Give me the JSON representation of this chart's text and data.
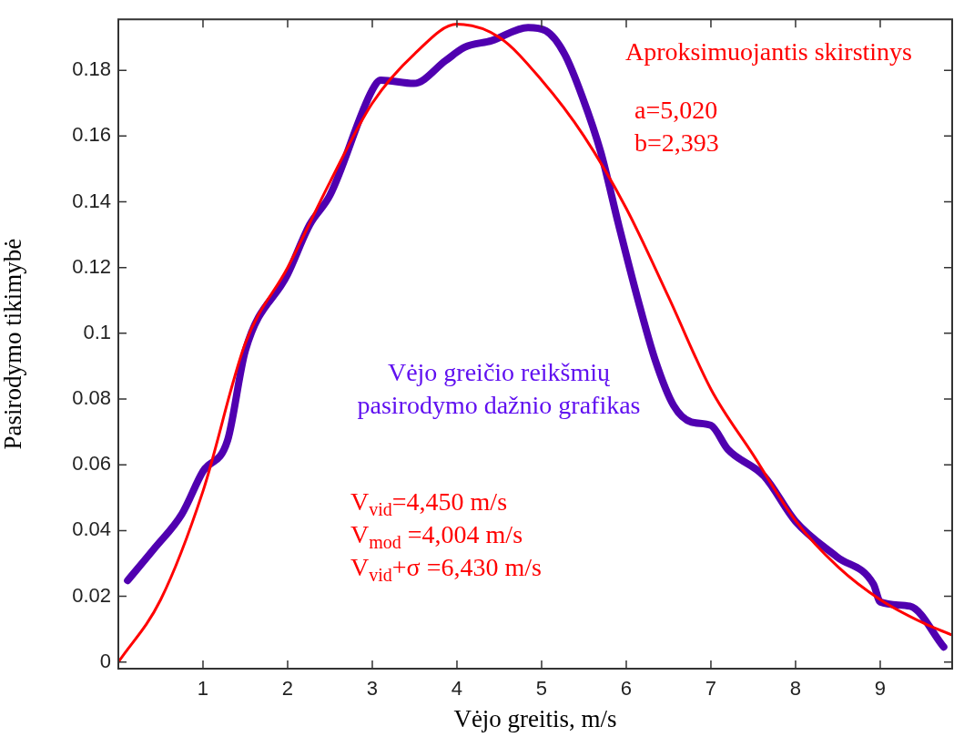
{
  "chart_data": {
    "type": "line",
    "xlabel": "Vėjo greitis, m/s",
    "ylabel": "Pasirodymo tikimybė",
    "xlim": [
      0,
      9.85
    ],
    "xticks": [
      1,
      2,
      3,
      4,
      5,
      6,
      7,
      8,
      9
    ],
    "ylim": [
      -0.002,
      0.1955
    ],
    "yticks": [
      0,
      0.02,
      0.04,
      0.06,
      0.08,
      0.1,
      0.12,
      0.14,
      0.16,
      0.18
    ],
    "grid": false,
    "legend": false,
    "marker": "none",
    "line_style": "solid",
    "series": [
      {
        "name": "Vėjo greičio reikšmių pasirodymo dažnio grafikas",
        "color": "#5000b0",
        "x": [
          0.11,
          0.43,
          0.75,
          1,
          1.29,
          1.5,
          2,
          2.26,
          2.5,
          3,
          3.1,
          3.49,
          3.87,
          4.09,
          4.41,
          4.84,
          5.05,
          5.27,
          5.48,
          5.7,
          5.91,
          6.13,
          6.34,
          6.56,
          6.77,
          7,
          7.2,
          7.63,
          8,
          8.49,
          8.92,
          9,
          9.35,
          9.75
        ],
        "values": [
          0.0248,
          0.0347,
          0.045,
          0.058,
          0.0674,
          0.0947,
          0.118,
          0.133,
          0.142,
          0.174,
          0.177,
          0.176,
          0.183,
          0.187,
          0.189,
          0.193,
          0.192,
          0.185,
          0.172,
          0.155,
          0.133,
          0.111,
          0.092,
          0.078,
          0.073,
          0.072,
          0.0647,
          0.0565,
          0.0428,
          0.032,
          0.0237,
          0.0183,
          0.017,
          0.0046
        ]
      },
      {
        "name": "Aproksimuojantis skirstinys",
        "color": "#ff0000",
        "x": [
          0,
          0.5,
          1,
          1.5,
          2,
          2.5,
          3,
          3.5,
          4,
          4.5,
          5,
          5.5,
          6,
          6.5,
          7,
          7.5,
          8,
          8.5,
          9,
          9.5,
          9.85
        ],
        "values": [
          0,
          0.019,
          0.052,
          0.097,
          0.12,
          0.146,
          0.17,
          0.185,
          0.194,
          0.19,
          0.177,
          0.16,
          0.138,
          0.111,
          0.083,
          0.063,
          0.043,
          0.029,
          0.019,
          0.012,
          0.0082
        ]
      }
    ],
    "annotations": [
      "a=5,020",
      "b=2,393",
      "V$_{vid}$=4,450 m/s",
      "V$_{mod}$ =4,004 m/s",
      "V$_{vid}$+σ =6,430 m/s"
    ]
  }
}
